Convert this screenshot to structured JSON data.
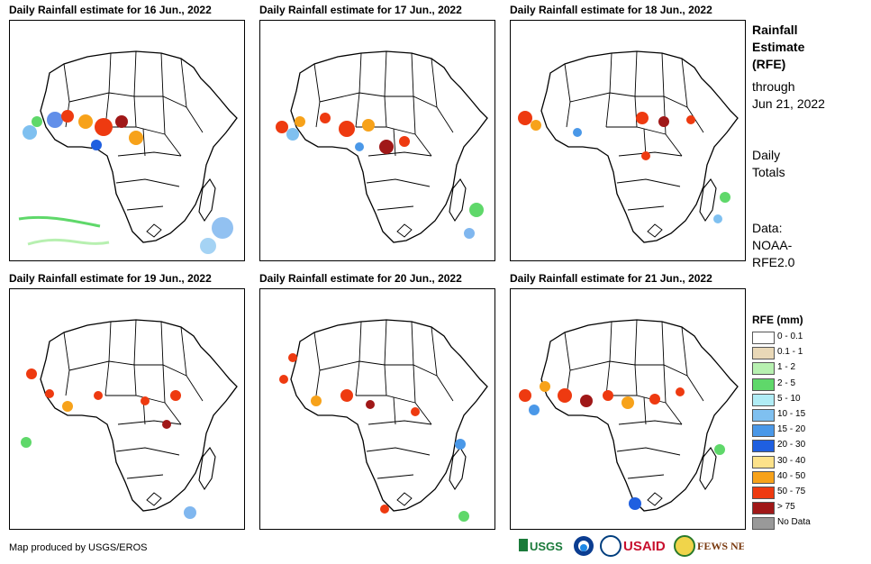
{
  "panels": [
    {
      "title": "Daily Rainfall estimate for 16 Jun., 2022"
    },
    {
      "title": "Daily Rainfall estimate for 17 Jun., 2022"
    },
    {
      "title": "Daily Rainfall estimate for 18 Jun., 2022"
    },
    {
      "title": "Daily Rainfall estimate for 19 Jun., 2022"
    },
    {
      "title": "Daily Rainfall estimate for 20 Jun., 2022"
    },
    {
      "title": "Daily Rainfall estimate for 21 Jun., 2022"
    }
  ],
  "sidebar": {
    "title_line1": "Rainfall",
    "title_line2": "Estimate",
    "title_line3": "(RFE)",
    "through": "through",
    "date": "Jun 21, 2022",
    "daily1": "Daily",
    "daily2": "Totals",
    "data1": "Data:",
    "data2": "NOAA-",
    "data3": "RFE2.0"
  },
  "legend": {
    "title": "RFE (mm)",
    "items": [
      {
        "label": "0 - 0.1",
        "color": "#ffffff"
      },
      {
        "label": "0.1 - 1",
        "color": "#e9d8b7"
      },
      {
        "label": "1 - 2",
        "color": "#b7f0b0"
      },
      {
        "label": "2 - 5",
        "color": "#5fd86a"
      },
      {
        "label": "5 - 10",
        "color": "#b0ecf5"
      },
      {
        "label": "10 - 15",
        "color": "#7fc0f0"
      },
      {
        "label": "15 - 20",
        "color": "#4a98e8"
      },
      {
        "label": "20 - 30",
        "color": "#1f5fe0"
      },
      {
        "label": "30 - 40",
        "color": "#fde28a"
      },
      {
        "label": "40 - 50",
        "color": "#f7a21a"
      },
      {
        "label": "50 - 75",
        "color": "#ee3a10"
      },
      {
        "label": "> 75",
        "color": "#a01818"
      },
      {
        "label": "No Data",
        "color": "#999999"
      }
    ]
  },
  "footer": {
    "credit": "Map produced by USGS/EROS",
    "logos": [
      "USGS",
      "NOAA",
      "USAID",
      "FEWS NET"
    ]
  }
}
